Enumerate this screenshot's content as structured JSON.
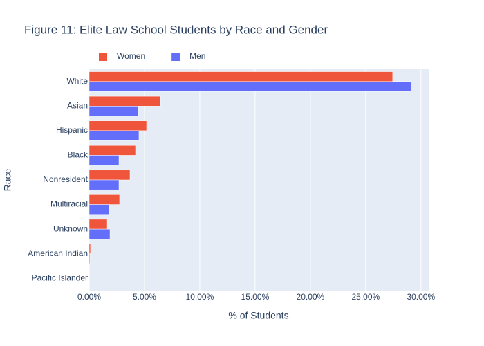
{
  "chart_data": {
    "type": "bar",
    "orientation": "horizontal",
    "title": "Figure 11: Elite Law School Students by Race and Gender",
    "xlabel": "% of Students",
    "ylabel": "Race",
    "categories": [
      "White",
      "Asian",
      "Hispanic",
      "Black",
      "Nonresident",
      "Multiracial",
      "Unknown",
      "American Indian",
      "Pacific Islander"
    ],
    "series": [
      {
        "name": "Women",
        "color": "#EF553B",
        "values": [
          27.44,
          6.44,
          5.19,
          4.19,
          3.69,
          2.75,
          1.63,
          0.12,
          0.02
        ]
      },
      {
        "name": "Men",
        "color": "#636EFA",
        "values": [
          29.1,
          4.44,
          4.5,
          2.69,
          2.69,
          1.81,
          1.88,
          0.06,
          0.02
        ]
      }
    ],
    "xlim": [
      0,
      30.7
    ],
    "xticks": [
      {
        "value": 0,
        "label": "0.00%"
      },
      {
        "value": 5,
        "label": "5.00%"
      },
      {
        "value": 10,
        "label": "10.00%"
      },
      {
        "value": 15,
        "label": "15.00%"
      },
      {
        "value": 20,
        "label": "20.00%"
      },
      {
        "value": 25,
        "label": "25.00%"
      },
      {
        "value": 30,
        "label": "30.00%"
      }
    ],
    "grid": true,
    "legend": "top"
  }
}
